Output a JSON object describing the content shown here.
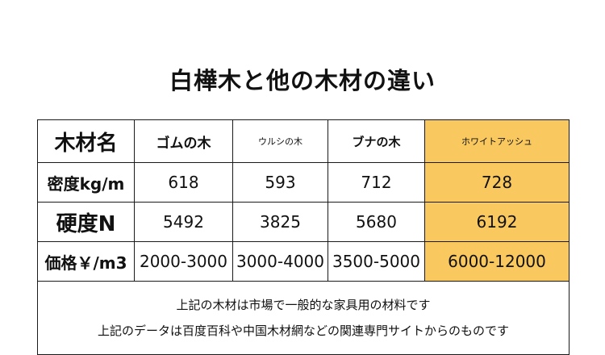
{
  "title": "白樺木と他の木材の違い",
  "table": {
    "corner": "木材名",
    "columns": [
      "ゴムの木",
      "ウルシの木",
      "ブナの木",
      "ホワイトアッシュ"
    ],
    "rows": [
      {
        "label": "密度kg/m",
        "values": [
          "618",
          "593",
          "712",
          "728"
        ]
      },
      {
        "label": "硬度N",
        "values": [
          "5492",
          "3825",
          "5680",
          "6192"
        ]
      },
      {
        "label": "価格￥/m3",
        "values": [
          "2000-3000",
          "3000-4000",
          "3500-5000",
          "6000-12000"
        ]
      }
    ],
    "highlight_color": "#f9c85e"
  },
  "notes": [
    "上記の木材は市場で一般的な家具用の材料です",
    "上記のデータは百度百科や中国木材網などの関連専門サイトからのものです"
  ]
}
